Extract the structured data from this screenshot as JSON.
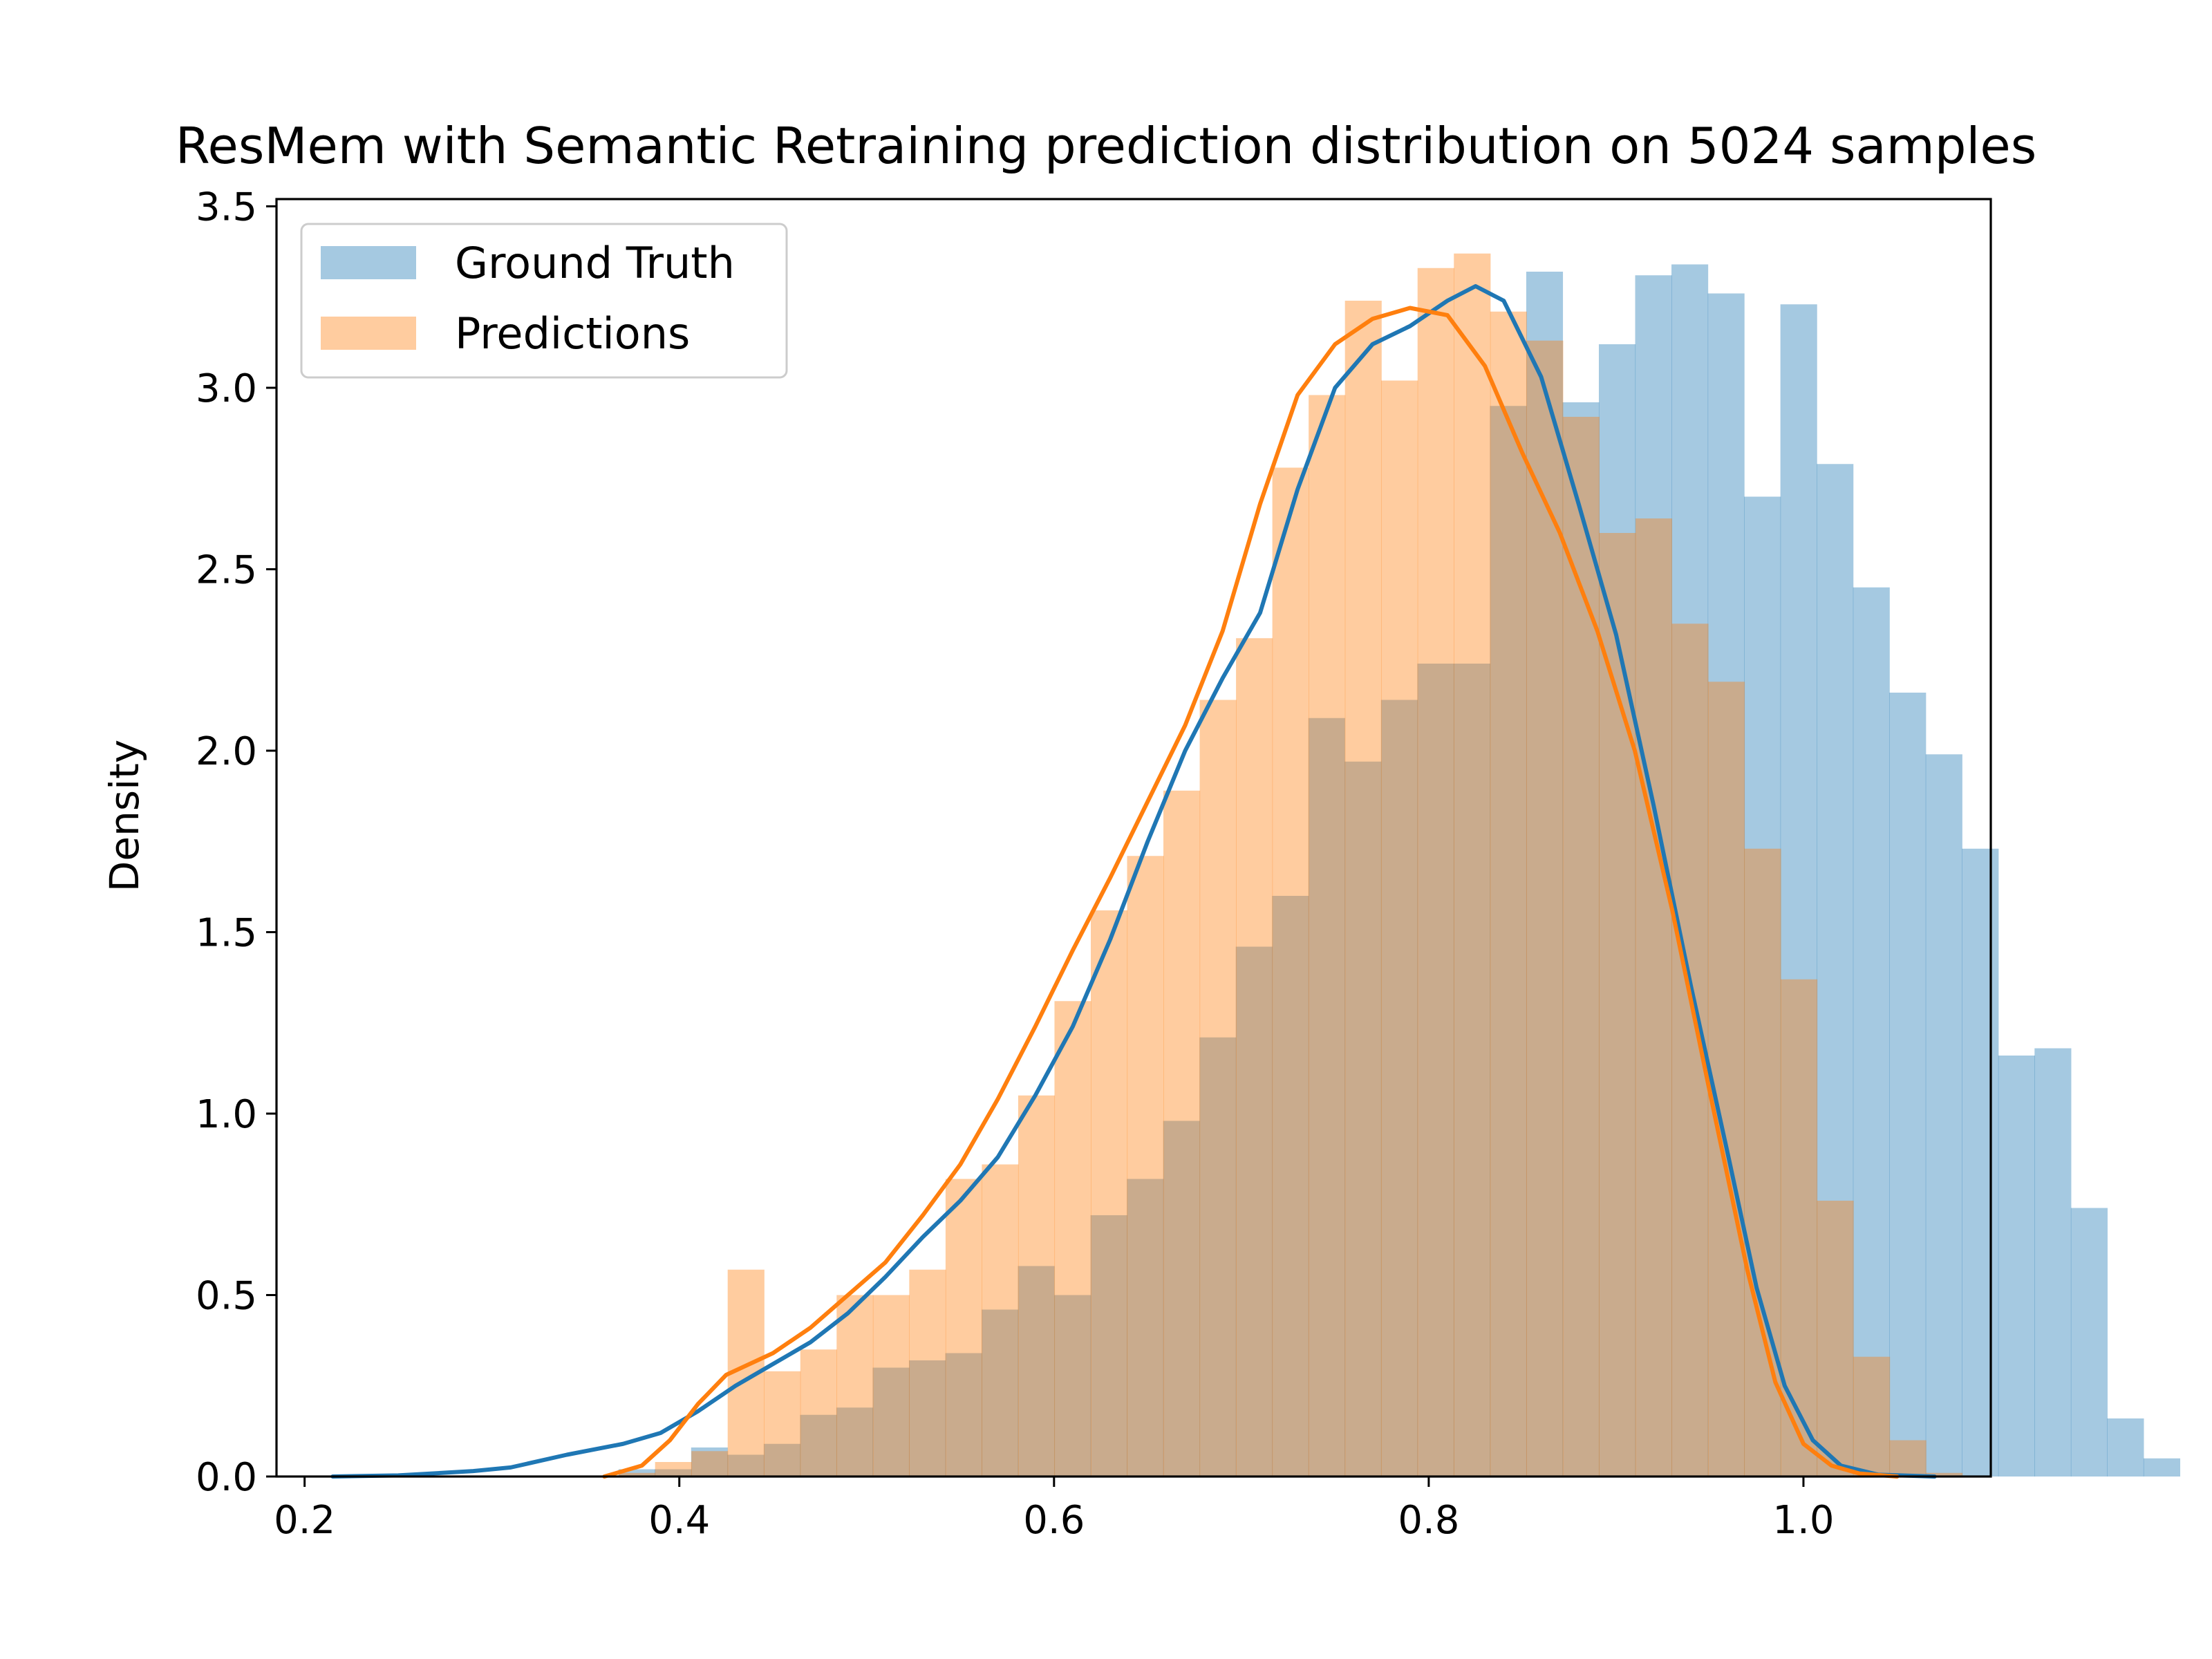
{
  "chart_data": {
    "type": "histogram",
    "title": "ResMem with Semantic Retraining prediction distribution on 5024 samples",
    "xlabel": "",
    "ylabel": "Density",
    "xlim": [
      0.185,
      1.1
    ],
    "ylim": [
      0,
      3.52
    ],
    "x_ticks": [
      "0.2",
      "0.4",
      "0.6",
      "0.8",
      "1.0"
    ],
    "y_ticks": [
      "0.0",
      "0.5",
      "1.0",
      "1.5",
      "2.0",
      "2.5",
      "3.0",
      "3.5"
    ],
    "grid": false,
    "legend_position": "top-left",
    "series": [
      {
        "name": "Ground Truth",
        "color": "#1f77b4",
        "bin_start": 0.2125,
        "bin_width": 0.01938,
        "density": [
          0.0,
          0.0,
          0.0,
          0.0,
          0.0,
          0.0,
          0.0,
          0.0,
          0.02,
          0.02,
          0.08,
          0.06,
          0.09,
          0.17,
          0.19,
          0.3,
          0.32,
          0.34,
          0.46,
          0.58,
          0.5,
          0.72,
          0.82,
          0.98,
          1.21,
          1.46,
          1.6,
          2.09,
          1.97,
          2.14,
          2.24,
          2.24,
          2.95,
          3.32,
          2.96,
          3.12,
          3.31,
          3.34,
          3.26,
          2.7,
          3.23,
          2.79,
          2.45,
          2.16,
          1.99,
          1.73,
          1.16,
          1.18,
          0.74,
          0.16,
          0.05
        ]
      },
      {
        "name": "Predictions",
        "color": "#ff7f0e",
        "bin_start": 0.3483,
        "bin_width": 0.01938,
        "density": [
          0.0,
          0.01,
          0.04,
          0.07,
          0.57,
          0.29,
          0.35,
          0.5,
          0.5,
          0.57,
          0.82,
          0.86,
          1.05,
          1.31,
          1.56,
          1.71,
          1.89,
          2.14,
          2.31,
          2.78,
          2.98,
          3.24,
          3.02,
          3.33,
          3.37,
          3.21,
          3.13,
          2.92,
          2.6,
          2.64,
          2.35,
          2.19,
          1.73,
          1.37,
          0.76,
          0.33,
          0.1,
          0.01
        ]
      }
    ],
    "kde": [
      {
        "name": "Ground Truth",
        "color": "#1f77b4",
        "points": [
          [
            0.215,
            0.0
          ],
          [
            0.25,
            0.003
          ],
          [
            0.29,
            0.015
          ],
          [
            0.31,
            0.025
          ],
          [
            0.34,
            0.06
          ],
          [
            0.37,
            0.09
          ],
          [
            0.39,
            0.12
          ],
          [
            0.41,
            0.18
          ],
          [
            0.43,
            0.25
          ],
          [
            0.45,
            0.31
          ],
          [
            0.47,
            0.37
          ],
          [
            0.49,
            0.45
          ],
          [
            0.51,
            0.55
          ],
          [
            0.53,
            0.66
          ],
          [
            0.55,
            0.76
          ],
          [
            0.57,
            0.88
          ],
          [
            0.59,
            1.05
          ],
          [
            0.61,
            1.24
          ],
          [
            0.63,
            1.48
          ],
          [
            0.65,
            1.75
          ],
          [
            0.67,
            2.0
          ],
          [
            0.69,
            2.2
          ],
          [
            0.71,
            2.38
          ],
          [
            0.73,
            2.72
          ],
          [
            0.75,
            3.0
          ],
          [
            0.77,
            3.12
          ],
          [
            0.79,
            3.17
          ],
          [
            0.81,
            3.24
          ],
          [
            0.825,
            3.28
          ],
          [
            0.84,
            3.24
          ],
          [
            0.86,
            3.03
          ],
          [
            0.88,
            2.68
          ],
          [
            0.9,
            2.32
          ],
          [
            0.92,
            1.85
          ],
          [
            0.94,
            1.35
          ],
          [
            0.96,
            0.88
          ],
          [
            0.975,
            0.52
          ],
          [
            0.99,
            0.25
          ],
          [
            1.005,
            0.1
          ],
          [
            1.02,
            0.03
          ],
          [
            1.04,
            0.005
          ],
          [
            1.07,
            0.0
          ]
        ]
      },
      {
        "name": "Predictions",
        "color": "#ff7f0e",
        "points": [
          [
            0.36,
            0.0
          ],
          [
            0.38,
            0.03
          ],
          [
            0.395,
            0.1
          ],
          [
            0.41,
            0.2
          ],
          [
            0.425,
            0.28
          ],
          [
            0.45,
            0.34
          ],
          [
            0.47,
            0.41
          ],
          [
            0.49,
            0.5
          ],
          [
            0.51,
            0.59
          ],
          [
            0.53,
            0.72
          ],
          [
            0.55,
            0.86
          ],
          [
            0.57,
            1.04
          ],
          [
            0.59,
            1.24
          ],
          [
            0.61,
            1.45
          ],
          [
            0.63,
            1.65
          ],
          [
            0.65,
            1.86
          ],
          [
            0.67,
            2.07
          ],
          [
            0.69,
            2.33
          ],
          [
            0.71,
            2.68
          ],
          [
            0.73,
            2.98
          ],
          [
            0.75,
            3.12
          ],
          [
            0.77,
            3.19
          ],
          [
            0.79,
            3.22
          ],
          [
            0.81,
            3.2
          ],
          [
            0.83,
            3.06
          ],
          [
            0.85,
            2.82
          ],
          [
            0.87,
            2.6
          ],
          [
            0.89,
            2.33
          ],
          [
            0.91,
            2.0
          ],
          [
            0.93,
            1.56
          ],
          [
            0.95,
            1.06
          ],
          [
            0.97,
            0.57
          ],
          [
            0.985,
            0.26
          ],
          [
            1.0,
            0.09
          ],
          [
            1.015,
            0.03
          ],
          [
            1.03,
            0.008
          ],
          [
            1.05,
            0.0
          ]
        ]
      }
    ]
  }
}
